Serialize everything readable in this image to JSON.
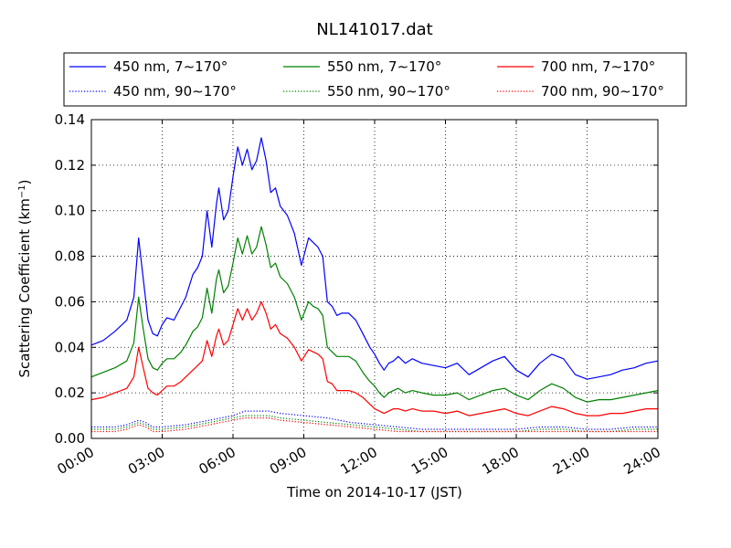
{
  "chart_data": {
    "type": "line",
    "title": "NL141017.dat",
    "xlabel": "Time on 2014-10-17 (JST)",
    "ylabel_main": "Scattering Coefficient (km",
    "ylabel_sup": "−1",
    "ylabel_end": ")",
    "xlim": [
      0,
      24
    ],
    "ylim": [
      0,
      0.14
    ],
    "grid": true,
    "legend_placement": "above-plot",
    "x_ticks": [
      {
        "value": 0,
        "label": "00:00"
      },
      {
        "value": 3,
        "label": "03:00"
      },
      {
        "value": 6,
        "label": "06:00"
      },
      {
        "value": 9,
        "label": "09:00"
      },
      {
        "value": 12,
        "label": "12:00"
      },
      {
        "value": 15,
        "label": "15:00"
      },
      {
        "value": 18,
        "label": "18:00"
      },
      {
        "value": 21,
        "label": "21:00"
      },
      {
        "value": 24,
        "label": "24:00"
      }
    ],
    "y_ticks": [
      {
        "value": 0.0,
        "label": "0.00"
      },
      {
        "value": 0.02,
        "label": "0.02"
      },
      {
        "value": 0.04,
        "label": "0.04"
      },
      {
        "value": 0.06,
        "label": "0.06"
      },
      {
        "value": 0.08,
        "label": "0.08"
      },
      {
        "value": 0.1,
        "label": "0.10"
      },
      {
        "value": 0.12,
        "label": "0.12"
      },
      {
        "value": 0.14,
        "label": "0.14"
      }
    ],
    "series": [
      {
        "name": "450 nm, 7∼170°",
        "color": "#0000ff",
        "style": "solid",
        "x": [
          0,
          0.5,
          1,
          1.5,
          1.8,
          2,
          2.2,
          2.4,
          2.6,
          2.8,
          3,
          3.2,
          3.5,
          3.8,
          4,
          4.3,
          4.5,
          4.7,
          4.9,
          5.1,
          5.3,
          5.4,
          5.6,
          5.8,
          6,
          6.2,
          6.4,
          6.6,
          6.8,
          7,
          7.2,
          7.4,
          7.6,
          7.8,
          8,
          8.3,
          8.6,
          8.9,
          9.2,
          9.4,
          9.6,
          9.8,
          10,
          10.2,
          10.4,
          10.6,
          10.9,
          11.2,
          11.5,
          11.8,
          12,
          12.2,
          12.4,
          12.6,
          12.8,
          13,
          13.3,
          13.6,
          14,
          14.5,
          15,
          15.5,
          16,
          16.5,
          17,
          17.5,
          18,
          18.5,
          19,
          19.5,
          20,
          20.5,
          21,
          21.5,
          22,
          22.5,
          23,
          23.5,
          24
        ],
        "y": [
          0.041,
          0.043,
          0.047,
          0.052,
          0.062,
          0.088,
          0.07,
          0.052,
          0.046,
          0.045,
          0.05,
          0.053,
          0.052,
          0.058,
          0.062,
          0.072,
          0.075,
          0.08,
          0.1,
          0.084,
          0.103,
          0.11,
          0.096,
          0.1,
          0.115,
          0.128,
          0.12,
          0.127,
          0.118,
          0.122,
          0.132,
          0.122,
          0.108,
          0.11,
          0.102,
          0.098,
          0.09,
          0.076,
          0.088,
          0.086,
          0.084,
          0.08,
          0.06,
          0.058,
          0.054,
          0.055,
          0.055,
          0.052,
          0.046,
          0.04,
          0.037,
          0.033,
          0.03,
          0.033,
          0.034,
          0.036,
          0.033,
          0.035,
          0.033,
          0.032,
          0.031,
          0.033,
          0.028,
          0.031,
          0.034,
          0.036,
          0.03,
          0.027,
          0.033,
          0.037,
          0.035,
          0.028,
          0.026,
          0.027,
          0.028,
          0.03,
          0.031,
          0.033,
          0.034
        ]
      },
      {
        "name": "550 nm, 7∼170°",
        "color": "#008000",
        "style": "solid",
        "x": [
          0,
          0.5,
          1,
          1.5,
          1.8,
          2,
          2.2,
          2.4,
          2.6,
          2.8,
          3,
          3.2,
          3.5,
          3.8,
          4,
          4.3,
          4.5,
          4.7,
          4.9,
          5.1,
          5.3,
          5.4,
          5.6,
          5.8,
          6,
          6.2,
          6.4,
          6.6,
          6.8,
          7,
          7.2,
          7.4,
          7.6,
          7.8,
          8,
          8.3,
          8.6,
          8.9,
          9.2,
          9.4,
          9.6,
          9.8,
          10,
          10.2,
          10.4,
          10.6,
          10.9,
          11.2,
          11.5,
          11.8,
          12,
          12.2,
          12.4,
          12.6,
          12.8,
          13,
          13.3,
          13.6,
          14,
          14.5,
          15,
          15.5,
          16,
          16.5,
          17,
          17.5,
          18,
          18.5,
          19,
          19.5,
          20,
          20.5,
          21,
          21.5,
          22,
          22.5,
          23,
          23.5,
          24
        ],
        "y": [
          0.027,
          0.029,
          0.031,
          0.034,
          0.042,
          0.062,
          0.048,
          0.035,
          0.031,
          0.03,
          0.033,
          0.035,
          0.035,
          0.038,
          0.041,
          0.047,
          0.049,
          0.053,
          0.066,
          0.055,
          0.07,
          0.074,
          0.064,
          0.067,
          0.077,
          0.088,
          0.081,
          0.089,
          0.081,
          0.084,
          0.093,
          0.085,
          0.075,
          0.077,
          0.071,
          0.068,
          0.062,
          0.052,
          0.06,
          0.058,
          0.057,
          0.054,
          0.04,
          0.038,
          0.036,
          0.036,
          0.036,
          0.034,
          0.029,
          0.025,
          0.023,
          0.02,
          0.018,
          0.02,
          0.021,
          0.022,
          0.02,
          0.021,
          0.02,
          0.019,
          0.019,
          0.02,
          0.017,
          0.019,
          0.021,
          0.022,
          0.019,
          0.017,
          0.021,
          0.024,
          0.022,
          0.018,
          0.016,
          0.017,
          0.017,
          0.018,
          0.019,
          0.02,
          0.021
        ]
      },
      {
        "name": "700 nm, 7∼170°",
        "color": "#ff0000",
        "style": "solid",
        "x": [
          0,
          0.5,
          1,
          1.5,
          1.8,
          2,
          2.2,
          2.4,
          2.6,
          2.8,
          3,
          3.2,
          3.5,
          3.8,
          4,
          4.3,
          4.5,
          4.7,
          4.9,
          5.1,
          5.3,
          5.4,
          5.6,
          5.8,
          6,
          6.2,
          6.4,
          6.6,
          6.8,
          7,
          7.2,
          7.4,
          7.6,
          7.8,
          8,
          8.3,
          8.6,
          8.9,
          9.2,
          9.4,
          9.6,
          9.8,
          10,
          10.2,
          10.4,
          10.6,
          10.9,
          11.2,
          11.5,
          11.8,
          12,
          12.2,
          12.4,
          12.6,
          12.8,
          13,
          13.3,
          13.6,
          14,
          14.5,
          15,
          15.5,
          16,
          16.5,
          17,
          17.5,
          18,
          18.5,
          19,
          19.5,
          20,
          20.5,
          21,
          21.5,
          22,
          22.5,
          23,
          23.5,
          24
        ],
        "y": [
          0.017,
          0.018,
          0.02,
          0.022,
          0.027,
          0.04,
          0.031,
          0.022,
          0.02,
          0.019,
          0.021,
          0.023,
          0.023,
          0.025,
          0.027,
          0.03,
          0.032,
          0.034,
          0.043,
          0.036,
          0.045,
          0.048,
          0.041,
          0.043,
          0.05,
          0.057,
          0.052,
          0.057,
          0.052,
          0.055,
          0.06,
          0.055,
          0.048,
          0.05,
          0.046,
          0.044,
          0.04,
          0.034,
          0.039,
          0.038,
          0.037,
          0.035,
          0.025,
          0.024,
          0.021,
          0.021,
          0.021,
          0.02,
          0.018,
          0.015,
          0.013,
          0.012,
          0.011,
          0.012,
          0.013,
          0.013,
          0.012,
          0.013,
          0.012,
          0.012,
          0.011,
          0.012,
          0.01,
          0.011,
          0.012,
          0.013,
          0.011,
          0.01,
          0.012,
          0.014,
          0.013,
          0.011,
          0.01,
          0.01,
          0.011,
          0.011,
          0.012,
          0.013,
          0.013
        ]
      },
      {
        "name": "450 nm, 90∼170°",
        "color": "#0000ff",
        "style": "dotted",
        "x": [
          0,
          1,
          1.5,
          2,
          2.3,
          2.6,
          3,
          4,
          5,
          6,
          6.5,
          7,
          7.5,
          8,
          9,
          10,
          11,
          12,
          13,
          14,
          15,
          16,
          17,
          18,
          19,
          20,
          21,
          22,
          23,
          24
        ],
        "y": [
          0.005,
          0.005,
          0.006,
          0.008,
          0.007,
          0.005,
          0.005,
          0.006,
          0.008,
          0.01,
          0.012,
          0.012,
          0.012,
          0.011,
          0.01,
          0.009,
          0.007,
          0.006,
          0.005,
          0.004,
          0.004,
          0.004,
          0.004,
          0.004,
          0.005,
          0.005,
          0.004,
          0.004,
          0.005,
          0.005
        ]
      },
      {
        "name": "550 nm, 90∼170°",
        "color": "#008000",
        "style": "dotted",
        "x": [
          0,
          1,
          1.5,
          2,
          2.3,
          2.6,
          3,
          4,
          5,
          6,
          6.5,
          7,
          7.5,
          8,
          9,
          10,
          11,
          12,
          13,
          14,
          15,
          16,
          17,
          18,
          19,
          20,
          21,
          22,
          23,
          24
        ],
        "y": [
          0.004,
          0.004,
          0.005,
          0.007,
          0.006,
          0.004,
          0.004,
          0.005,
          0.007,
          0.009,
          0.01,
          0.01,
          0.01,
          0.009,
          0.008,
          0.007,
          0.006,
          0.005,
          0.004,
          0.003,
          0.003,
          0.003,
          0.003,
          0.003,
          0.004,
          0.004,
          0.003,
          0.003,
          0.004,
          0.004
        ]
      },
      {
        "name": "700 nm, 90∼170°",
        "color": "#ff0000",
        "style": "dotted",
        "x": [
          0,
          1,
          1.5,
          2,
          2.3,
          2.6,
          3,
          4,
          5,
          6,
          6.5,
          7,
          7.5,
          8,
          9,
          10,
          11,
          12,
          13,
          14,
          15,
          16,
          17,
          18,
          19,
          20,
          21,
          22,
          23,
          24
        ],
        "y": [
          0.003,
          0.003,
          0.004,
          0.006,
          0.005,
          0.003,
          0.003,
          0.004,
          0.006,
          0.008,
          0.009,
          0.009,
          0.009,
          0.008,
          0.007,
          0.006,
          0.005,
          0.004,
          0.003,
          0.003,
          0.003,
          0.003,
          0.003,
          0.003,
          0.003,
          0.003,
          0.003,
          0.003,
          0.003,
          0.003
        ]
      }
    ]
  }
}
